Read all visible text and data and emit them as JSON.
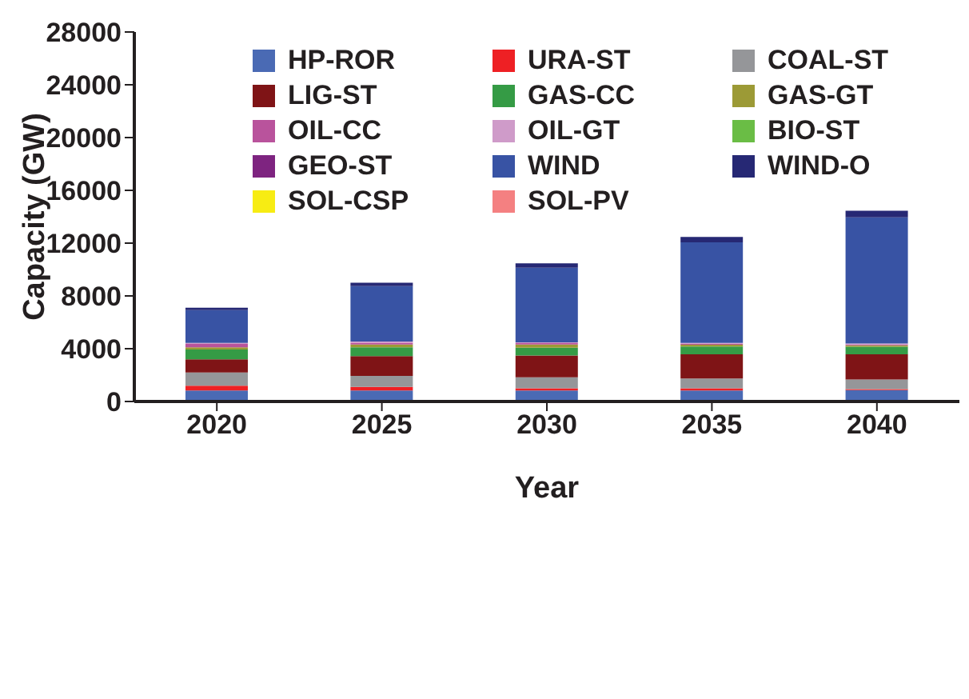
{
  "chart_data": {
    "type": "bar",
    "stacked": true,
    "xlabel": "Year",
    "ylabel": "Capacity (GW)",
    "categories": [
      "2020",
      "2025",
      "2030",
      "2035",
      "2040"
    ],
    "ylim": [
      0,
      28000
    ],
    "yticks": [
      0,
      4000,
      8000,
      12000,
      16000,
      20000,
      24000,
      28000
    ],
    "legend": "top",
    "series": [
      {
        "name": "HP-ROR",
        "color": "#4a6ab4",
        "values": [
          830,
          830,
          830,
          830,
          860
        ]
      },
      {
        "name": "URA-ST",
        "color": "#ee2024",
        "values": [
          360,
          280,
          170,
          170,
          80
        ]
      },
      {
        "name": "COAL-ST",
        "color": "#959699",
        "values": [
          1000,
          830,
          830,
          750,
          720
        ]
      },
      {
        "name": "LIG-ST",
        "color": "#7f1416",
        "values": [
          1000,
          1500,
          1660,
          1830,
          1910
        ]
      },
      {
        "name": "GAS-CC",
        "color": "#359b45",
        "values": [
          750,
          660,
          580,
          580,
          580
        ]
      },
      {
        "name": "GAS-GT",
        "color": "#9c9a36",
        "values": [
          170,
          220,
          250,
          140,
          110
        ]
      },
      {
        "name": "OIL-CC",
        "color": "#b9539c",
        "values": [
          250,
          140,
          110,
          80,
          80
        ]
      },
      {
        "name": "OIL-GT",
        "color": "#cf9bc9",
        "values": [
          80,
          80,
          55,
          55,
          55
        ]
      },
      {
        "name": "BIO-ST",
        "color": "#6abd45",
        "values": [
          0,
          0,
          0,
          0,
          0
        ]
      },
      {
        "name": "GEO-ST",
        "color": "#7e2480",
        "values": [
          0,
          0,
          0,
          0,
          0
        ]
      },
      {
        "name": "WIND",
        "color": "#3853a4",
        "values": [
          2490,
          4210,
          5650,
          7620,
          9560
        ]
      },
      {
        "name": "WIND-O",
        "color": "#262874",
        "values": [
          170,
          250,
          330,
          420,
          500
        ]
      },
      {
        "name": "SOL-CSP",
        "color": "#f7ec13",
        "values": [
          0,
          0,
          0,
          0,
          0
        ]
      },
      {
        "name": "SOL-PV",
        "color": "#f48081",
        "values": [
          0,
          0,
          0,
          0,
          0
        ]
      }
    ]
  }
}
